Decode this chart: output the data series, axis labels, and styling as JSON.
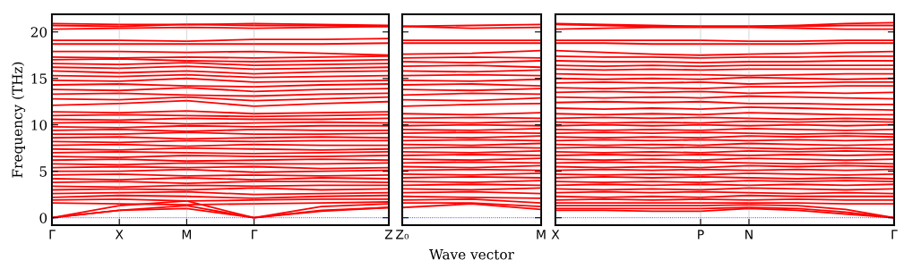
{
  "chart_data": [
    {
      "type": "line",
      "ylabel": "Frequency (THz)",
      "categories": [
        "Γ",
        "X",
        "M",
        "Γ",
        null,
        "Z"
      ],
      "ylim": [
        -0.8,
        21.9
      ],
      "yticks": [
        0,
        5,
        10,
        15,
        20
      ],
      "grid": "x",
      "ref_lines": [
        {
          "axis": "y",
          "value": 0,
          "color": "#0000ff",
          "line_style": "dotted"
        }
      ],
      "series": [
        {
          "color": "#ff0000",
          "values": [
            0,
            0.8,
            1.0,
            0,
            0.7,
            1.1
          ]
        },
        {
          "color": "#ff0000",
          "values": [
            0,
            0.8,
            1.3,
            0,
            0.8,
            1.1
          ]
        },
        {
          "color": "#ff0000",
          "values": [
            0,
            1.3,
            1.8,
            0,
            1.2,
            1.5
          ]
        },
        {
          "color": "#ff0000",
          "values": [
            1.6,
            1.5,
            1.4,
            1.5,
            1.6,
            1.7
          ]
        },
        {
          "color": "#ff0000",
          "values": [
            1.9,
            2.0,
            1.8,
            1.9,
            2.0,
            2.0
          ]
        },
        {
          "color": "#ff0000",
          "values": [
            2.2,
            2.4,
            2.3,
            2.1,
            2.3,
            2.4
          ]
        },
        {
          "color": "#ff0000",
          "values": [
            2.6,
            2.7,
            2.8,
            2.5,
            2.6,
            2.7
          ]
        },
        {
          "color": "#ff0000",
          "values": [
            3.0,
            3.1,
            3.0,
            3.2,
            3.0,
            3.1
          ]
        },
        {
          "color": "#ff0000",
          "values": [
            3.4,
            3.3,
            3.5,
            3.4,
            3.5,
            3.5
          ]
        },
        {
          "color": "#ff0000",
          "values": [
            3.8,
            3.9,
            3.7,
            3.9,
            3.9,
            3.8
          ]
        },
        {
          "color": "#ff0000",
          "values": [
            4.2,
            4.1,
            4.3,
            4.1,
            4.3,
            4.2
          ]
        },
        {
          "color": "#ff0000",
          "values": [
            4.6,
            4.7,
            4.5,
            4.6,
            4.5,
            4.6
          ]
        },
        {
          "color": "#ff0000",
          "values": [
            5.0,
            5.0,
            5.2,
            4.9,
            5.0,
            5.1
          ]
        },
        {
          "color": "#ff0000",
          "values": [
            5.4,
            5.5,
            5.4,
            5.5,
            5.3,
            5.4
          ]
        },
        {
          "color": "#ff0000",
          "values": [
            5.8,
            5.7,
            5.9,
            5.8,
            5.8,
            5.9
          ]
        },
        {
          "color": "#ff0000",
          "values": [
            6.2,
            6.3,
            6.1,
            6.2,
            6.3,
            6.2
          ]
        },
        {
          "color": "#ff0000",
          "values": [
            6.6,
            6.5,
            6.7,
            6.6,
            6.6,
            6.7
          ]
        },
        {
          "color": "#ff0000",
          "values": [
            7.0,
            7.1,
            7.0,
            6.9,
            7.0,
            7.1
          ]
        },
        {
          "color": "#ff0000",
          "values": [
            7.4,
            7.3,
            7.5,
            7.4,
            7.3,
            7.4
          ]
        },
        {
          "color": "#ff0000",
          "values": [
            7.8,
            7.9,
            7.7,
            7.9,
            7.8,
            7.8
          ]
        },
        {
          "color": "#ff0000",
          "values": [
            8.2,
            8.1,
            8.3,
            8.2,
            8.3,
            8.3
          ]
        },
        {
          "color": "#ff0000",
          "values": [
            8.6,
            8.7,
            8.5,
            8.6,
            8.7,
            8.6
          ]
        },
        {
          "color": "#ff0000",
          "values": [
            9.0,
            9.0,
            9.2,
            9.0,
            9.0,
            9.1
          ]
        },
        {
          "color": "#ff0000",
          "values": [
            9.4,
            9.5,
            9.3,
            9.5,
            9.4,
            9.4
          ]
        },
        {
          "color": "#ff0000",
          "values": [
            9.8,
            9.7,
            9.9,
            9.8,
            9.9,
            9.9
          ]
        },
        {
          "color": "#ff0000",
          "values": [
            10.2,
            10.3,
            10.1,
            10.2,
            10.3,
            10.2
          ]
        },
        {
          "color": "#ff0000",
          "values": [
            10.6,
            10.5,
            10.7,
            10.6,
            10.6,
            10.7
          ]
        },
        {
          "color": "#ff0000",
          "values": [
            11.0,
            11.1,
            11.0,
            10.9,
            11.0,
            11.1
          ]
        },
        {
          "color": "#ff0000",
          "values": [
            11.4,
            11.3,
            11.5,
            11.2,
            11.3,
            11.4
          ]
        },
        {
          "color": "#ff0000",
          "values": [
            12.1,
            12.3,
            12.6,
            12.0,
            12.3,
            12.5
          ]
        },
        {
          "color": "#ff0000",
          "values": [
            12.8,
            12.7,
            13.0,
            12.6,
            12.8,
            13.0
          ]
        },
        {
          "color": "#ff0000",
          "values": [
            13.3,
            13.4,
            13.2,
            13.1,
            13.3,
            13.4
          ]
        },
        {
          "color": "#ff0000",
          "values": [
            13.8,
            13.7,
            14.0,
            13.6,
            13.8,
            13.9
          ]
        },
        {
          "color": "#ff0000",
          "values": [
            14.3,
            14.4,
            14.2,
            14.1,
            14.3,
            14.4
          ]
        },
        {
          "color": "#ff0000",
          "values": [
            14.8,
            14.7,
            15.0,
            14.6,
            14.7,
            14.8
          ]
        },
        {
          "color": "#ff0000",
          "values": [
            15.3,
            15.2,
            15.4,
            15.1,
            15.2,
            15.3
          ]
        },
        {
          "color": "#ff0000",
          "values": [
            15.8,
            15.6,
            15.8,
            15.5,
            15.7,
            15.8
          ]
        },
        {
          "color": "#ff0000",
          "values": [
            16.2,
            16.1,
            16.3,
            16.0,
            16.1,
            16.2
          ]
        },
        {
          "color": "#ff0000",
          "values": [
            16.6,
            16.5,
            16.7,
            16.4,
            16.5,
            16.6
          ]
        },
        {
          "color": "#ff0000",
          "values": [
            17.0,
            17.1,
            16.9,
            16.8,
            16.9,
            17.0
          ]
        },
        {
          "color": "#ff0000",
          "values": [
            17.3,
            17.2,
            17.3,
            17.2,
            17.3,
            17.4
          ]
        },
        {
          "color": "#ff0000",
          "values": [
            17.9,
            17.9,
            17.8,
            17.9,
            17.7,
            17.5
          ]
        },
        {
          "color": "#ff0000",
          "values": [
            18.7,
            18.7,
            18.7,
            18.7,
            18.7,
            18.8
          ]
        },
        {
          "color": "#ff0000",
          "values": [
            19.1,
            19.1,
            19.0,
            19.2,
            19.2,
            19.3
          ]
        },
        {
          "color": "#ff0000",
          "values": [
            20.3,
            20.4,
            20.5,
            20.4,
            20.5,
            20.6
          ]
        },
        {
          "color": "#ff0000",
          "values": [
            20.7,
            20.6,
            20.8,
            20.7,
            20.7,
            20.6
          ]
        },
        {
          "color": "#ff0000",
          "values": [
            20.9,
            20.8,
            20.8,
            20.9,
            20.8,
            20.7
          ]
        }
      ]
    },
    {
      "type": "line",
      "xlabel": "Wave vector",
      "categories": [
        "Z₀",
        null,
        "M"
      ],
      "ylim": [
        -0.8,
        21.9
      ],
      "yticks": [
        0,
        5,
        10,
        15,
        20
      ],
      "tick_labels": "x",
      "grid": "x",
      "ref_lines": [
        {
          "axis": "y",
          "value": 0,
          "color": "#0000ff",
          "line_style": "dotted"
        }
      ],
      "series": [
        {
          "color": "#ff0000",
          "values": [
            1.1,
            1.5,
            0.9
          ]
        },
        {
          "color": "#ff0000",
          "values": [
            1.6,
            1.6,
            1.2
          ]
        },
        {
          "color": "#ff0000",
          "values": [
            1.9,
            2.0,
            1.6
          ]
        },
        {
          "color": "#ff0000",
          "values": [
            2.3,
            2.2,
            2.1
          ]
        },
        {
          "color": "#ff0000",
          "values": [
            2.7,
            2.8,
            2.6
          ]
        },
        {
          "color": "#ff0000",
          "values": [
            3.1,
            3.0,
            3.2
          ]
        },
        {
          "color": "#ff0000",
          "values": [
            3.5,
            3.6,
            3.5
          ]
        },
        {
          "color": "#ff0000",
          "values": [
            3.9,
            3.8,
            4.0
          ]
        },
        {
          "color": "#ff0000",
          "values": [
            4.3,
            4.4,
            4.3
          ]
        },
        {
          "color": "#ff0000",
          "values": [
            4.7,
            4.6,
            4.8
          ]
        },
        {
          "color": "#ff0000",
          "values": [
            5.1,
            5.2,
            5.1
          ]
        },
        {
          "color": "#ff0000",
          "values": [
            5.5,
            5.4,
            5.6
          ]
        },
        {
          "color": "#ff0000",
          "values": [
            5.9,
            6.0,
            5.9
          ]
        },
        {
          "color": "#ff0000",
          "values": [
            6.3,
            6.2,
            6.4
          ]
        },
        {
          "color": "#ff0000",
          "values": [
            6.7,
            6.8,
            6.7
          ]
        },
        {
          "color": "#ff0000",
          "values": [
            7.1,
            7.0,
            7.2
          ]
        },
        {
          "color": "#ff0000",
          "values": [
            7.5,
            7.6,
            7.5
          ]
        },
        {
          "color": "#ff0000",
          "values": [
            7.9,
            7.8,
            8.0
          ]
        },
        {
          "color": "#ff0000",
          "values": [
            8.3,
            8.4,
            8.3
          ]
        },
        {
          "color": "#ff0000",
          "values": [
            8.7,
            8.6,
            8.8
          ]
        },
        {
          "color": "#ff0000",
          "values": [
            9.1,
            9.2,
            9.1
          ]
        },
        {
          "color": "#ff0000",
          "values": [
            9.5,
            9.4,
            9.6
          ]
        },
        {
          "color": "#ff0000",
          "values": [
            9.9,
            10.0,
            9.9
          ]
        },
        {
          "color": "#ff0000",
          "values": [
            10.3,
            10.2,
            10.4
          ]
        },
        {
          "color": "#ff0000",
          "values": [
            10.7,
            10.8,
            10.7
          ]
        },
        {
          "color": "#ff0000",
          "values": [
            11.2,
            11.1,
            11.3
          ]
        },
        {
          "color": "#ff0000",
          "values": [
            12.0,
            12.2,
            12.3
          ]
        },
        {
          "color": "#ff0000",
          "values": [
            12.7,
            12.6,
            12.9
          ]
        },
        {
          "color": "#ff0000",
          "values": [
            13.2,
            13.4,
            13.3
          ]
        },
        {
          "color": "#ff0000",
          "values": [
            13.8,
            13.7,
            13.9
          ]
        },
        {
          "color": "#ff0000",
          "values": [
            14.3,
            14.4,
            14.2
          ]
        },
        {
          "color": "#ff0000",
          "values": [
            14.8,
            14.7,
            14.9
          ]
        },
        {
          "color": "#ff0000",
          "values": [
            15.3,
            15.4,
            15.3
          ]
        },
        {
          "color": "#ff0000",
          "values": [
            15.8,
            15.7,
            15.9
          ]
        },
        {
          "color": "#ff0000",
          "values": [
            16.3,
            16.4,
            16.2
          ]
        },
        {
          "color": "#ff0000",
          "values": [
            16.8,
            16.7,
            16.9
          ]
        },
        {
          "color": "#ff0000",
          "values": [
            17.2,
            17.3,
            17.2
          ]
        },
        {
          "color": "#ff0000",
          "values": [
            17.6,
            17.7,
            18.0
          ]
        },
        {
          "color": "#ff0000",
          "values": [
            18.8,
            18.8,
            18.8
          ]
        },
        {
          "color": "#ff0000",
          "values": [
            19.1,
            19.1,
            19.1
          ]
        },
        {
          "color": "#ff0000",
          "values": [
            20.6,
            20.4,
            20.5
          ]
        },
        {
          "color": "#ff0000",
          "values": [
            20.6,
            20.7,
            20.8
          ]
        }
      ]
    },
    {
      "type": "line",
      "categories": [
        "X",
        null,
        null,
        "P",
        "N",
        null,
        null,
        "Γ"
      ],
      "ylim": [
        -0.8,
        21.9
      ],
      "yticks": [
        0,
        5,
        10,
        15,
        20
      ],
      "tick_labels": "x",
      "grid": "x",
      "ref_lines": [
        {
          "axis": "y",
          "value": 0,
          "color": "#0000ff",
          "line_style": "dotted"
        }
      ],
      "series": [
        {
          "color": "#ff0000",
          "values": [
            0.8,
            0.8,
            0.7,
            0.7,
            1.0,
            0.8,
            0.4,
            0
          ]
        },
        {
          "color": "#ff0000",
          "values": [
            1.0,
            1.0,
            1.0,
            1.0,
            1.1,
            1.0,
            0.6,
            0
          ]
        },
        {
          "color": "#ff0000",
          "values": [
            1.3,
            1.3,
            1.3,
            1.3,
            1.4,
            1.3,
            0.9,
            0
          ]
        },
        {
          "color": "#ff0000",
          "values": [
            1.6,
            1.6,
            1.6,
            1.6,
            1.6,
            1.6,
            1.5,
            1.5
          ]
        },
        {
          "color": "#ff0000",
          "values": [
            1.9,
            2.0,
            1.9,
            2.0,
            1.9,
            2.0,
            1.9,
            1.9
          ]
        },
        {
          "color": "#ff0000",
          "values": [
            2.3,
            2.2,
            2.3,
            2.2,
            2.4,
            2.3,
            2.3,
            2.3
          ]
        },
        {
          "color": "#ff0000",
          "values": [
            2.7,
            2.8,
            2.7,
            2.8,
            2.7,
            2.6,
            2.7,
            2.6
          ]
        },
        {
          "color": "#ff0000",
          "values": [
            3.1,
            3.0,
            3.1,
            3.0,
            3.2,
            3.1,
            3.0,
            3.1
          ]
        },
        {
          "color": "#ff0000",
          "values": [
            3.5,
            3.6,
            3.5,
            3.6,
            3.5,
            3.6,
            3.5,
            3.6
          ]
        },
        {
          "color": "#ff0000",
          "values": [
            3.9,
            3.8,
            3.9,
            3.8,
            4.0,
            3.9,
            4.0,
            3.9
          ]
        },
        {
          "color": "#ff0000",
          "values": [
            4.3,
            4.4,
            4.3,
            4.4,
            4.3,
            4.2,
            4.3,
            4.2
          ]
        },
        {
          "color": "#ff0000",
          "values": [
            4.7,
            4.6,
            4.7,
            4.6,
            4.8,
            4.7,
            4.6,
            4.7
          ]
        },
        {
          "color": "#ff0000",
          "values": [
            5.1,
            5.2,
            5.1,
            5.2,
            5.1,
            5.2,
            5.1,
            5.2
          ]
        },
        {
          "color": "#ff0000",
          "values": [
            5.5,
            5.4,
            5.5,
            5.4,
            5.6,
            5.5,
            5.6,
            5.5
          ]
        },
        {
          "color": "#ff0000",
          "values": [
            5.9,
            6.0,
            5.9,
            6.0,
            5.9,
            5.8,
            5.9,
            5.8
          ]
        },
        {
          "color": "#ff0000",
          "values": [
            6.3,
            6.2,
            6.3,
            6.2,
            6.4,
            6.3,
            6.2,
            6.3
          ]
        },
        {
          "color": "#ff0000",
          "values": [
            6.7,
            6.8,
            6.7,
            6.8,
            6.7,
            6.8,
            6.7,
            6.8
          ]
        },
        {
          "color": "#ff0000",
          "values": [
            7.1,
            7.0,
            7.1,
            7.0,
            7.2,
            7.1,
            7.2,
            7.1
          ]
        },
        {
          "color": "#ff0000",
          "values": [
            7.5,
            7.6,
            7.5,
            7.6,
            7.5,
            7.4,
            7.5,
            7.4
          ]
        },
        {
          "color": "#ff0000",
          "values": [
            7.9,
            7.8,
            7.9,
            7.8,
            8.0,
            7.9,
            7.8,
            7.9
          ]
        },
        {
          "color": "#ff0000",
          "values": [
            8.3,
            8.4,
            8.3,
            8.4,
            8.3,
            8.4,
            8.3,
            8.4
          ]
        },
        {
          "color": "#ff0000",
          "values": [
            8.7,
            8.6,
            8.7,
            8.6,
            8.8,
            8.7,
            8.8,
            8.7
          ]
        },
        {
          "color": "#ff0000",
          "values": [
            9.1,
            9.2,
            9.1,
            9.2,
            9.1,
            9.0,
            9.1,
            9.0
          ]
        },
        {
          "color": "#ff0000",
          "values": [
            9.5,
            9.4,
            9.5,
            9.4,
            9.6,
            9.5,
            9.4,
            9.5
          ]
        },
        {
          "color": "#ff0000",
          "values": [
            9.9,
            10.0,
            9.9,
            10.0,
            9.9,
            10.0,
            9.9,
            10.0
          ]
        },
        {
          "color": "#ff0000",
          "values": [
            10.3,
            10.2,
            10.3,
            10.2,
            10.4,
            10.3,
            10.4,
            10.3
          ]
        },
        {
          "color": "#ff0000",
          "values": [
            10.7,
            10.8,
            10.7,
            10.8,
            10.7,
            10.6,
            10.7,
            10.6
          ]
        },
        {
          "color": "#ff0000",
          "values": [
            11.2,
            11.1,
            11.2,
            11.1,
            11.3,
            11.2,
            11.1,
            11.1
          ]
        },
        {
          "color": "#ff0000",
          "values": [
            11.8,
            11.7,
            11.8,
            11.7,
            11.9,
            11.8,
            11.7,
            11.6
          ]
        },
        {
          "color": "#ff0000",
          "values": [
            12.4,
            12.5,
            12.4,
            12.5,
            12.3,
            12.3,
            12.2,
            12.2
          ]
        },
        {
          "color": "#ff0000",
          "values": [
            13.0,
            12.9,
            13.0,
            12.9,
            13.1,
            13.0,
            12.9,
            12.8
          ]
        },
        {
          "color": "#ff0000",
          "values": [
            13.5,
            13.6,
            13.5,
            13.6,
            13.4,
            13.5,
            13.4,
            13.5
          ]
        },
        {
          "color": "#ff0000",
          "values": [
            14.0,
            13.9,
            14.0,
            13.9,
            14.1,
            14.1,
            14.2,
            14.2
          ]
        },
        {
          "color": "#ff0000",
          "values": [
            14.5,
            14.6,
            14.5,
            14.6,
            14.4,
            14.5,
            14.6,
            14.6
          ]
        },
        {
          "color": "#ff0000",
          "values": [
            15.0,
            14.9,
            15.0,
            14.9,
            15.1,
            15.0,
            14.9,
            15.0
          ]
        },
        {
          "color": "#ff0000",
          "values": [
            15.5,
            15.4,
            15.4,
            15.4,
            15.3,
            15.4,
            15.5,
            15.5
          ]
        },
        {
          "color": "#ff0000",
          "values": [
            16.0,
            15.9,
            16.0,
            15.9,
            16.0,
            16.0,
            16.0,
            16.0
          ]
        },
        {
          "color": "#ff0000",
          "values": [
            16.4,
            16.3,
            16.4,
            16.3,
            16.4,
            16.4,
            16.4,
            16.4
          ]
        },
        {
          "color": "#ff0000",
          "values": [
            16.9,
            16.8,
            16.8,
            16.7,
            16.8,
            16.8,
            16.9,
            16.9
          ]
        },
        {
          "color": "#ff0000",
          "values": [
            17.4,
            17.3,
            17.3,
            17.2,
            17.3,
            17.3,
            17.4,
            17.4
          ]
        },
        {
          "color": "#ff0000",
          "values": [
            18.0,
            17.8,
            17.6,
            17.5,
            17.6,
            17.7,
            17.8,
            17.9
          ]
        },
        {
          "color": "#ff0000",
          "values": [
            18.8,
            18.8,
            18.7,
            18.7,
            18.7,
            18.7,
            18.8,
            18.8
          ]
        },
        {
          "color": "#ff0000",
          "values": [
            19.1,
            19.1,
            19.1,
            19.1,
            19.0,
            19.0,
            19.1,
            19.1
          ]
        },
        {
          "color": "#ff0000",
          "values": [
            20.3,
            20.4,
            20.5,
            20.5,
            20.5,
            20.4,
            20.3,
            20.3
          ]
        },
        {
          "color": "#ff0000",
          "values": [
            20.8,
            20.7,
            20.6,
            20.6,
            20.6,
            20.6,
            20.7,
            20.7
          ]
        },
        {
          "color": "#ff0000",
          "values": [
            20.9,
            20.8,
            20.7,
            20.6,
            20.6,
            20.7,
            20.9,
            21.0
          ]
        }
      ]
    }
  ]
}
